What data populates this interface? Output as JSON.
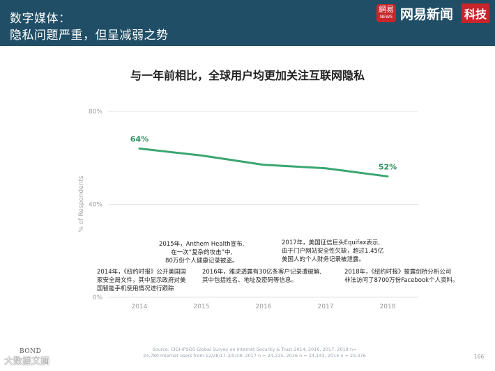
{
  "header": {
    "line1": "数字媒体：",
    "line2": "隐私问题严重，但呈减弱之势",
    "logo_badge": "網易",
    "logo_badge_sub": "NEWS",
    "logo_text": "网易新闻",
    "logo_tag": "科技"
  },
  "chart_data": {
    "type": "line",
    "title": "与一年前相比，全球用户均更加关注互联网隐私",
    "xlabel": "",
    "ylabel": "% of Respondents",
    "x": [
      "2014",
      "2015",
      "2016",
      "2017",
      "2018"
    ],
    "ylim": [
      0,
      80
    ],
    "yticks": [
      "0%",
      "40%",
      "80%"
    ],
    "series": [
      {
        "values": [
          64,
          61,
          57,
          55.5,
          52
        ]
      }
    ],
    "data_labels": [
      "64%",
      "52%"
    ],
    "line_color": "#3aa672",
    "grid": true
  },
  "annotations": [
    {
      "lines": [
        "2015年，Anthem Health宣布,",
        "在一次“复杂的攻击”中,",
        "80万份个人健康记录被盗。"
      ]
    },
    {
      "lines": [
        "2017年，美国征信巨头Equifax表示,",
        "由于门户网站安全性欠缺，超过1.45亿",
        "美国人的个人财务记录被泄露。"
      ]
    },
    {
      "lines": [
        "2014年，《纽约时报》公开美国国",
        "家安全局文件，其中显示政府对美",
        "国智能手机使用情况进行跟踪"
      ]
    },
    {
      "lines": [
        "2016年，雅虎透露有30亿条客户记录遭破解,",
        "其中包括姓名、地址及密码等信息。"
      ]
    },
    {
      "lines": [
        "2018年，《纽约时报》披露剑桥分析公司",
        "非法访问了8700万份Facebook个人资料。"
      ]
    }
  ],
  "footer": {
    "source_line1": "Source: CIGI-IPSOS Global Survey on Internet Security & Trust 2014, 2016, 2017, 2018 n=",
    "source_line2": "24,780 Internet users from 12/28/17-3/5/18. 2017 n = 24,225, 2016 n = 24,143, 2014 n = 23,376",
    "page_number": "166",
    "bond": "BOND",
    "watermark": "大数据文摘"
  }
}
